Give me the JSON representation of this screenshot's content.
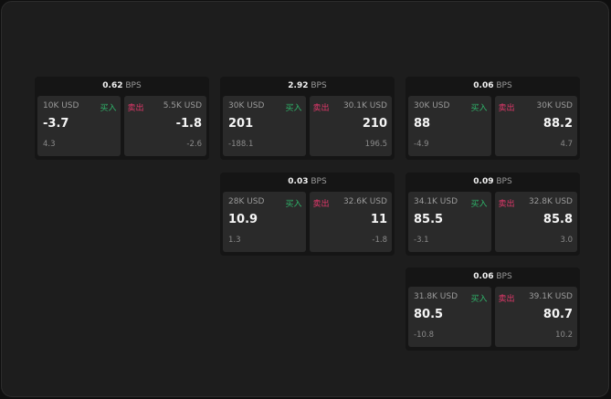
{
  "unit": "BPS",
  "buy_label": "买入",
  "sell_label": "卖出",
  "colors": {
    "buy": "#2fb46a",
    "sell": "#e0386a"
  },
  "widgets": [
    {
      "spread": "0.62",
      "buy": {
        "size": "10K USD",
        "price": "-3.7",
        "change": "4.3"
      },
      "sell": {
        "size": "5.5K USD",
        "price": "-1.8",
        "change": "-2.6"
      }
    },
    {
      "spread": "2.92",
      "buy": {
        "size": "30K USD",
        "price": "201",
        "change": "-188.1"
      },
      "sell": {
        "size": "30.1K USD",
        "price": "210",
        "change": "196.5"
      }
    },
    {
      "spread": "0.06",
      "buy": {
        "size": "30K USD",
        "price": "88",
        "change": "-4.9"
      },
      "sell": {
        "size": "30K USD",
        "price": "88.2",
        "change": "4.7"
      }
    },
    {
      "spread": "0.03",
      "buy": {
        "size": "28K USD",
        "price": "10.9",
        "change": "1.3"
      },
      "sell": {
        "size": "32.6K USD",
        "price": "11",
        "change": "-1.8"
      }
    },
    {
      "spread": "0.09",
      "buy": {
        "size": "34.1K USD",
        "price": "85.5",
        "change": "-3.1"
      },
      "sell": {
        "size": "32.8K USD",
        "price": "85.8",
        "change": "3.0"
      }
    },
    {
      "spread": "0.06",
      "buy": {
        "size": "31.8K USD",
        "price": "80.5",
        "change": "-10.8"
      },
      "sell": {
        "size": "39.1K USD",
        "price": "80.7",
        "change": "10.2"
      }
    }
  ]
}
